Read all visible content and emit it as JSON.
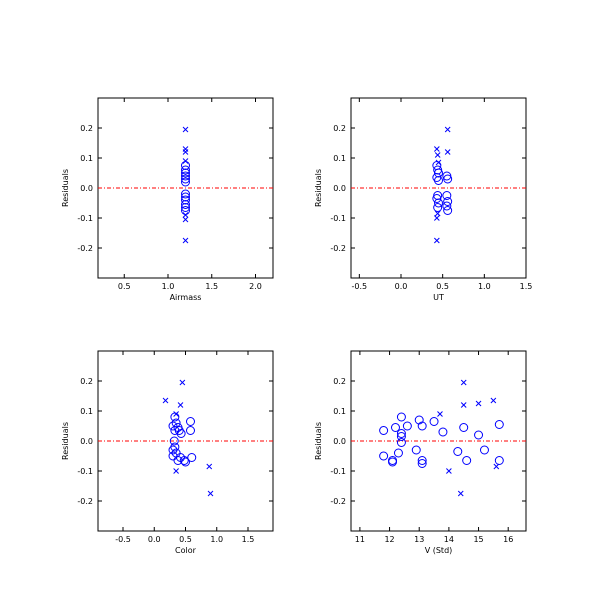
{
  "colors": {
    "marker": "#0000ff",
    "zero_line": "#ff0000",
    "frame": "#000000",
    "background": "#ffffff"
  },
  "chart_data": [
    {
      "type": "scatter",
      "xlabel": "Airmass",
      "ylabel": "Residuals",
      "xlim": [
        0.2,
        2.2
      ],
      "ylim": [
        -0.3,
        0.3
      ],
      "xticks": [
        "0.5",
        "1.0",
        "1.5",
        "2.0"
      ],
      "yticks": [
        "-0.2",
        "-0.1",
        "0.0",
        "0.1",
        "0.2"
      ],
      "reference_line_y": 0,
      "series": [
        {
          "marker": "circle",
          "points": [
            [
              1.2,
              0.075
            ],
            [
              1.2,
              0.06
            ],
            [
              1.2,
              0.05
            ],
            [
              1.2,
              0.04
            ],
            [
              1.2,
              0.03
            ],
            [
              1.2,
              0.02
            ],
            [
              1.2,
              -0.02
            ],
            [
              1.2,
              -0.03
            ],
            [
              1.2,
              -0.04
            ],
            [
              1.2,
              -0.055
            ],
            [
              1.2,
              -0.065
            ],
            [
              1.2,
              -0.075
            ]
          ]
        },
        {
          "marker": "cross",
          "points": [
            [
              1.2,
              0.195
            ],
            [
              1.2,
              0.13
            ],
            [
              1.2,
              0.12
            ],
            [
              1.2,
              0.09
            ],
            [
              1.2,
              -0.09
            ],
            [
              1.2,
              -0.105
            ],
            [
              1.2,
              -0.175
            ]
          ]
        }
      ]
    },
    {
      "type": "scatter",
      "xlabel": "UT",
      "ylabel": "Residuals",
      "xlim": [
        -0.6,
        1.5
      ],
      "ylim": [
        -0.3,
        0.3
      ],
      "xticks": [
        "-0.5",
        "0.0",
        "0.5",
        "1.0",
        "1.5"
      ],
      "yticks": [
        "-0.2",
        "-0.1",
        "0.0",
        "0.1",
        "0.2"
      ],
      "reference_line_y": 0,
      "series": [
        {
          "marker": "circle",
          "points": [
            [
              0.43,
              0.075
            ],
            [
              0.44,
              0.06
            ],
            [
              0.45,
              0.05
            ],
            [
              0.43,
              0.035
            ],
            [
              0.45,
              0.025
            ],
            [
              0.44,
              -0.025
            ],
            [
              0.43,
              -0.035
            ],
            [
              0.45,
              -0.05
            ],
            [
              0.44,
              -0.065
            ],
            [
              0.55,
              0.04
            ],
            [
              0.56,
              0.03
            ],
            [
              0.55,
              -0.025
            ],
            [
              0.56,
              -0.045
            ],
            [
              0.55,
              -0.06
            ],
            [
              0.56,
              -0.075
            ]
          ]
        },
        {
          "marker": "cross",
          "points": [
            [
              0.56,
              0.195
            ],
            [
              0.43,
              0.13
            ],
            [
              0.56,
              0.12
            ],
            [
              0.44,
              0.11
            ],
            [
              0.45,
              0.085
            ],
            [
              0.44,
              -0.085
            ],
            [
              0.43,
              -0.1
            ],
            [
              0.43,
              -0.175
            ]
          ]
        }
      ]
    },
    {
      "type": "scatter",
      "xlabel": "Color",
      "ylabel": "Residuals",
      "xlim": [
        -0.9,
        1.9
      ],
      "ylim": [
        -0.3,
        0.3
      ],
      "xticks": [
        "-0.5",
        "0.0",
        "0.5",
        "1.0",
        "1.5"
      ],
      "yticks": [
        "-0.2",
        "-0.1",
        "0.0",
        "0.1",
        "0.2"
      ],
      "reference_line_y": 0,
      "series": [
        {
          "marker": "circle",
          "points": [
            [
              0.33,
              0.08
            ],
            [
              0.35,
              0.06
            ],
            [
              0.3,
              0.05
            ],
            [
              0.38,
              0.045
            ],
            [
              0.33,
              0.035
            ],
            [
              0.4,
              0.035
            ],
            [
              0.43,
              0.025
            ],
            [
              0.58,
              0.065
            ],
            [
              0.58,
              0.035
            ],
            [
              0.32,
              0.0
            ],
            [
              0.33,
              -0.02
            ],
            [
              0.3,
              -0.03
            ],
            [
              0.35,
              -0.04
            ],
            [
              0.3,
              -0.05
            ],
            [
              0.42,
              -0.055
            ],
            [
              0.48,
              -0.065
            ],
            [
              0.5,
              -0.07
            ],
            [
              0.6,
              -0.055
            ],
            [
              0.38,
              -0.065
            ]
          ]
        },
        {
          "marker": "cross",
          "points": [
            [
              0.45,
              0.195
            ],
            [
              0.18,
              0.135
            ],
            [
              0.42,
              0.12
            ],
            [
              0.35,
              0.09
            ],
            [
              0.88,
              -0.085
            ],
            [
              0.35,
              -0.1
            ],
            [
              0.9,
              -0.175
            ]
          ]
        }
      ]
    },
    {
      "type": "scatter",
      "xlabel": "V (Std)",
      "ylabel": "Residuals",
      "xlim": [
        10.7,
        16.6
      ],
      "ylim": [
        -0.3,
        0.3
      ],
      "xticks": [
        "11",
        "12",
        "13",
        "14",
        "15",
        "16"
      ],
      "yticks": [
        "-0.2",
        "-0.1",
        "0.0",
        "0.1",
        "0.2"
      ],
      "reference_line_y": 0,
      "series": [
        {
          "marker": "circle",
          "points": [
            [
              11.8,
              0.035
            ],
            [
              11.8,
              -0.05
            ],
            [
              12.1,
              -0.065
            ],
            [
              12.1,
              -0.07
            ],
            [
              12.2,
              0.045
            ],
            [
              12.3,
              -0.04
            ],
            [
              12.4,
              0.08
            ],
            [
              12.4,
              0.025
            ],
            [
              12.4,
              0.015
            ],
            [
              12.4,
              -0.005
            ],
            [
              12.6,
              0.05
            ],
            [
              12.9,
              -0.03
            ],
            [
              13.0,
              0.07
            ],
            [
              13.1,
              0.05
            ],
            [
              13.1,
              -0.065
            ],
            [
              13.1,
              -0.075
            ],
            [
              13.5,
              0.065
            ],
            [
              13.8,
              0.03
            ],
            [
              14.3,
              -0.035
            ],
            [
              14.5,
              0.045
            ],
            [
              14.6,
              -0.065
            ],
            [
              15.0,
              0.02
            ],
            [
              15.2,
              -0.03
            ],
            [
              15.7,
              0.055
            ],
            [
              15.7,
              -0.065
            ]
          ]
        },
        {
          "marker": "cross",
          "points": [
            [
              14.5,
              0.195
            ],
            [
              15.5,
              0.135
            ],
            [
              15.0,
              0.125
            ],
            [
              14.5,
              0.12
            ],
            [
              13.7,
              0.09
            ],
            [
              14.0,
              -0.1
            ],
            [
              14.4,
              -0.175
            ],
            [
              15.6,
              -0.085
            ]
          ]
        }
      ]
    }
  ]
}
